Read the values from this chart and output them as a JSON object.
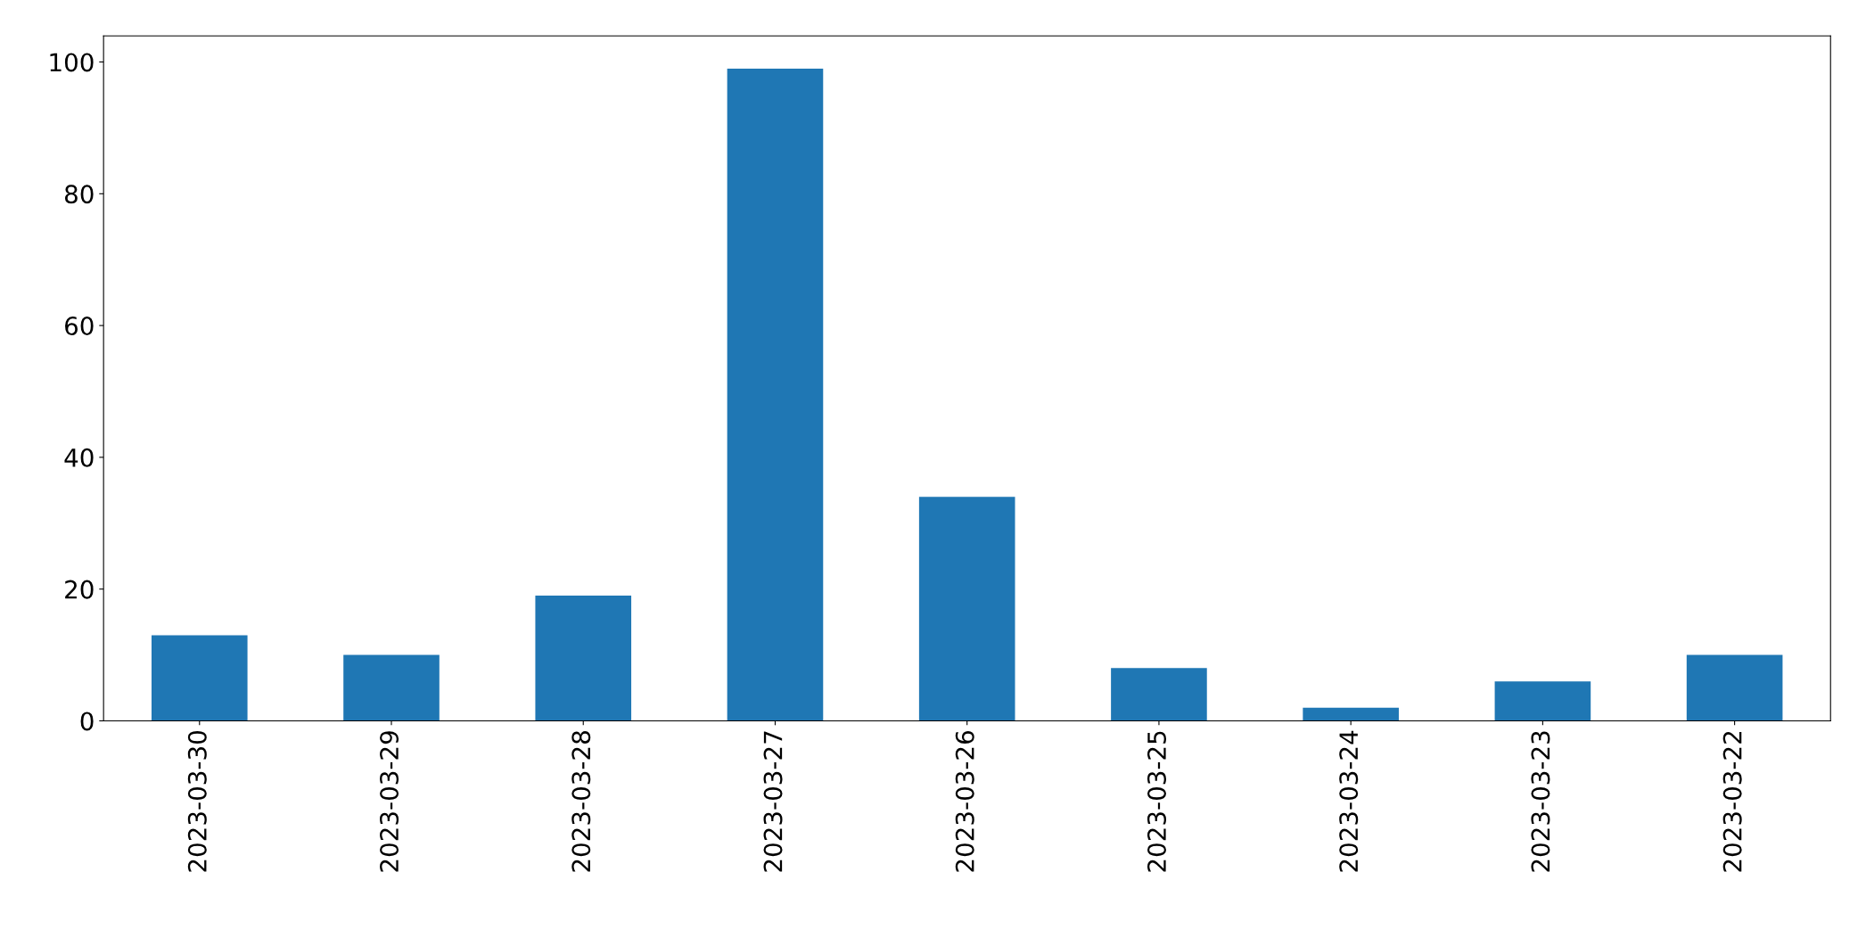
{
  "chart_data": {
    "type": "bar",
    "categories": [
      "2023-03-30",
      "2023-03-29",
      "2023-03-28",
      "2023-03-27",
      "2023-03-26",
      "2023-03-25",
      "2023-03-24",
      "2023-03-23",
      "2023-03-22"
    ],
    "values": [
      13,
      10,
      19,
      99,
      34,
      8,
      2,
      6,
      10
    ],
    "color": "#1f77b4",
    "ylim": [
      0,
      103.95
    ],
    "yticks": [
      0,
      20,
      40,
      60,
      80,
      100
    ],
    "grid": false,
    "legend": false
  }
}
